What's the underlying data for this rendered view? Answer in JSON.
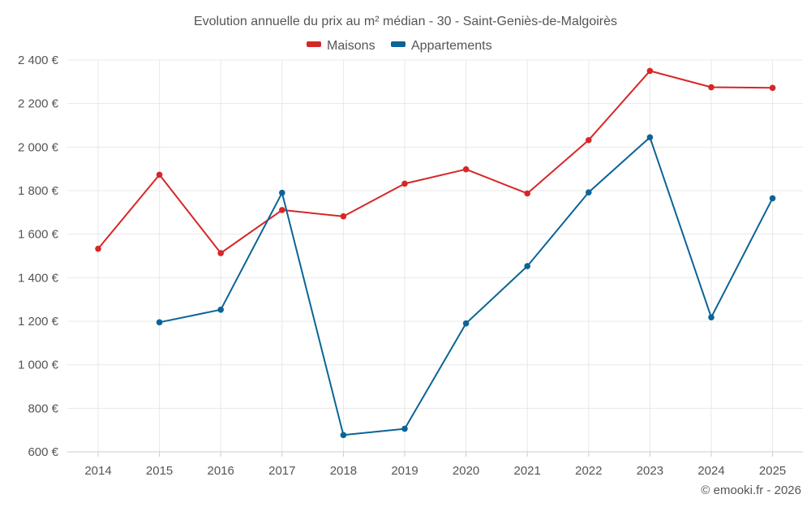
{
  "chart_data": {
    "type": "line",
    "title": "Evolution annuelle du prix au m² médian - 30 - Saint-Geniès-de-Malgoirès",
    "xlabel": "",
    "ylabel": "",
    "categories": [
      "2014",
      "2015",
      "2016",
      "2017",
      "2018",
      "2019",
      "2020",
      "2021",
      "2022",
      "2023",
      "2024",
      "2025"
    ],
    "ylim": [
      600,
      2400
    ],
    "yticks": [
      600,
      800,
      1000,
      1200,
      1400,
      1600,
      1800,
      2000,
      2200,
      2400
    ],
    "ytick_labels": [
      "600 €",
      "800 €",
      "1 000 €",
      "1 200 €",
      "1 400 €",
      "1 600 €",
      "1 800 €",
      "2 000 €",
      "2 200 €",
      "2 400 €"
    ],
    "grid": true,
    "legend_position": "top-center",
    "series": [
      {
        "name": "Maisons",
        "color": "#d62728",
        "values": [
          1533,
          1873,
          1513,
          1711,
          1682,
          1832,
          1898,
          1787,
          2032,
          2350,
          2275,
          2272
        ]
      },
      {
        "name": "Appartements",
        "color": "#0b6496",
        "values": [
          null,
          1195,
          1253,
          1790,
          677,
          706,
          1190,
          1453,
          1792,
          2045,
          1218,
          1765
        ]
      }
    ]
  },
  "credit": "© emooki.fr - 2026"
}
